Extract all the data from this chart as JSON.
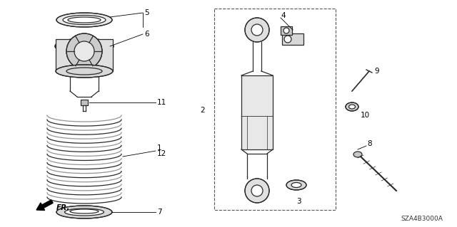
{
  "bg_color": "#ffffff",
  "line_color": "#2a2a2a",
  "diagram_code": "SZA4B3000A",
  "fr_label": "FR.",
  "label_fs": 7.5
}
